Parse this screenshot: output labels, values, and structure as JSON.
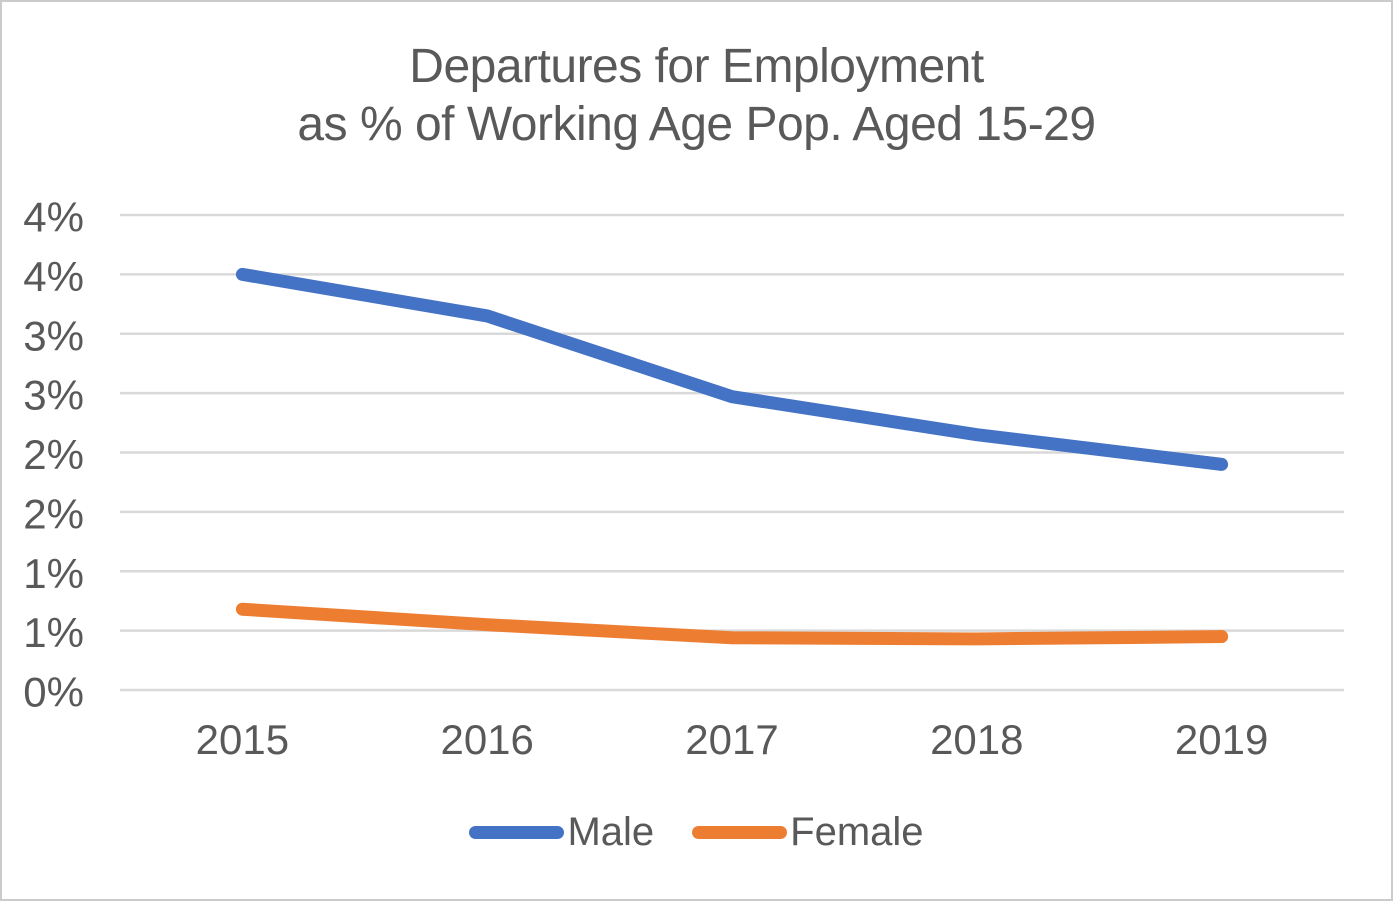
{
  "chart_data": {
    "type": "line",
    "title_line1": "Departures for Employment",
    "title_line2": "as % of Working Age Pop. Aged 15-29",
    "title": "Departures for Employment as % of Working Age Pop. Aged 15-29",
    "categories": [
      "2015",
      "2016",
      "2017",
      "2018",
      "2019"
    ],
    "series": [
      {
        "name": "Male",
        "color": "#4472C4",
        "values": [
          3.5,
          3.15,
          2.47,
          2.15,
          1.9
        ]
      },
      {
        "name": "Female",
        "color": "#ED7D31",
        "values": [
          0.68,
          0.55,
          0.44,
          0.43,
          0.45
        ]
      }
    ],
    "xlabel": "",
    "ylabel": "",
    "y_axis": {
      "min": 0,
      "max": 4,
      "major_unit": 0.5,
      "tick_labels_top_to_bottom": [
        "4%",
        "4%",
        "3%",
        "3%",
        "2%",
        "2%",
        "1%",
        "1%",
        "0%"
      ]
    },
    "grid": true,
    "legend_position": "bottom",
    "colors": {
      "grid": "#D9D9D9",
      "text": "#595959",
      "border": "#CBCBCB",
      "background": "#FFFFFF"
    }
  }
}
